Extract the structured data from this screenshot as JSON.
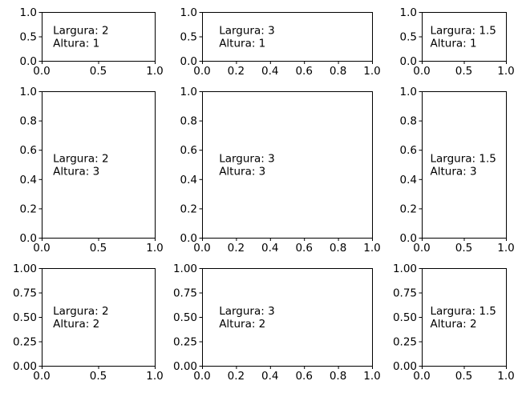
{
  "figure": {
    "background": "#ffffff",
    "axis_color": "#000000",
    "text_color": "#000000"
  },
  "chart_data": [
    {
      "type": "empty-axes",
      "row": 0,
      "col": 0,
      "xlim": [
        0,
        1
      ],
      "ylim": [
        0,
        1
      ],
      "xticks": [
        "0.0",
        "0.5",
        "1.0"
      ],
      "yticks": [
        "0.0",
        "0.5",
        "1.0"
      ],
      "annotation": [
        "Largura: 2",
        "Altura: 1"
      ],
      "grid": false
    },
    {
      "type": "empty-axes",
      "row": 0,
      "col": 1,
      "xlim": [
        0,
        1
      ],
      "ylim": [
        0,
        1
      ],
      "xticks": [
        "0.0",
        "0.2",
        "0.4",
        "0.6",
        "0.8",
        "1.0"
      ],
      "yticks": [
        "0.0",
        "0.5",
        "1.0"
      ],
      "annotation": [
        "Largura: 3",
        "Altura: 1"
      ],
      "grid": false
    },
    {
      "type": "empty-axes",
      "row": 0,
      "col": 2,
      "xlim": [
        0,
        1
      ],
      "ylim": [
        0,
        1
      ],
      "xticks": [
        "0.0",
        "0.5",
        "1.0"
      ],
      "yticks": [
        "0.0",
        "0.5",
        "1.0"
      ],
      "annotation": [
        "Largura: 1.5",
        "Altura: 1"
      ],
      "grid": false
    },
    {
      "type": "empty-axes",
      "row": 1,
      "col": 0,
      "xlim": [
        0,
        1
      ],
      "ylim": [
        0,
        1
      ],
      "xticks": [
        "0.0",
        "0.5",
        "1.0"
      ],
      "yticks": [
        "0.0",
        "0.2",
        "0.4",
        "0.6",
        "0.8",
        "1.0"
      ],
      "annotation": [
        "Largura: 2",
        "Altura: 3"
      ],
      "grid": false
    },
    {
      "type": "empty-axes",
      "row": 1,
      "col": 1,
      "xlim": [
        0,
        1
      ],
      "ylim": [
        0,
        1
      ],
      "xticks": [
        "0.0",
        "0.2",
        "0.4",
        "0.6",
        "0.8",
        "1.0"
      ],
      "yticks": [
        "0.0",
        "0.2",
        "0.4",
        "0.6",
        "0.8",
        "1.0"
      ],
      "annotation": [
        "Largura: 3",
        "Altura: 3"
      ],
      "grid": false
    },
    {
      "type": "empty-axes",
      "row": 1,
      "col": 2,
      "xlim": [
        0,
        1
      ],
      "ylim": [
        0,
        1
      ],
      "xticks": [
        "0.0",
        "0.5",
        "1.0"
      ],
      "yticks": [
        "0.0",
        "0.2",
        "0.4",
        "0.6",
        "0.8",
        "1.0"
      ],
      "annotation": [
        "Largura: 1.5",
        "Altura: 3"
      ],
      "grid": false
    },
    {
      "type": "empty-axes",
      "row": 2,
      "col": 0,
      "xlim": [
        0,
        1
      ],
      "ylim": [
        0,
        1
      ],
      "xticks": [
        "0.0",
        "0.5",
        "1.0"
      ],
      "yticks": [
        "0.00",
        "0.25",
        "0.50",
        "0.75",
        "1.00"
      ],
      "annotation": [
        "Largura: 2",
        "Altura: 2"
      ],
      "grid": false
    },
    {
      "type": "empty-axes",
      "row": 2,
      "col": 1,
      "xlim": [
        0,
        1
      ],
      "ylim": [
        0,
        1
      ],
      "xticks": [
        "0.0",
        "0.2",
        "0.4",
        "0.6",
        "0.8",
        "1.0"
      ],
      "yticks": [
        "0.00",
        "0.25",
        "0.50",
        "0.75",
        "1.00"
      ],
      "annotation": [
        "Largura: 3",
        "Altura: 2"
      ],
      "grid": false
    },
    {
      "type": "empty-axes",
      "row": 2,
      "col": 2,
      "xlim": [
        0,
        1
      ],
      "ylim": [
        0,
        1
      ],
      "xticks": [
        "0.0",
        "0.5",
        "1.0"
      ],
      "yticks": [
        "0.00",
        "0.25",
        "0.50",
        "0.75",
        "1.00"
      ],
      "annotation": [
        "Largura: 1.5",
        "Altura: 2"
      ],
      "grid": false
    }
  ]
}
